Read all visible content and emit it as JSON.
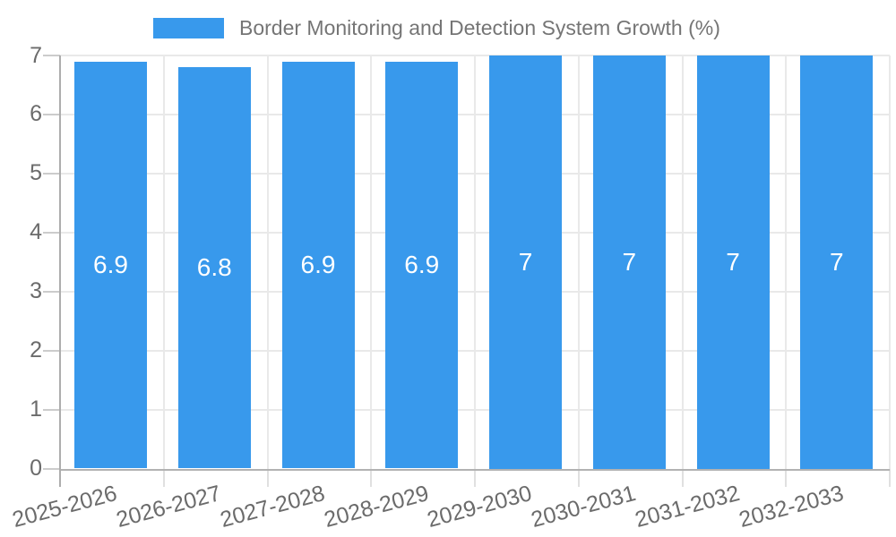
{
  "chart_data": {
    "type": "bar",
    "title": "Border Monitoring and Detection System Growth (%)",
    "categories": [
      "2025-2026",
      "2026-2027",
      "2027-2028",
      "2028-2029",
      "2029-2030",
      "2030-2031",
      "2031-2032",
      "2032-2033"
    ],
    "series": [
      {
        "name": "Border Monitoring and Detection System Growth (%)",
        "values": [
          6.9,
          6.8,
          6.9,
          6.9,
          7,
          7,
          7,
          7
        ]
      }
    ],
    "value_labels": [
      "6.9",
      "6.8",
      "6.9",
      "6.9",
      "7",
      "7",
      "7",
      "7"
    ],
    "xlabel": "",
    "ylabel": "",
    "ylim": [
      0,
      7
    ],
    "yticks": [
      0,
      1,
      2,
      3,
      4,
      5,
      6,
      7
    ],
    "grid": true,
    "legend_position": "top",
    "bar_color": "#3899EC",
    "value_label_color": "#FFFFFF"
  },
  "legend": {
    "label": "Border Monitoring and Detection System Growth (%)"
  },
  "colors": {
    "bar": "#3899EC",
    "gridline": "#E9E9E9",
    "axis_line": "#ADADAD",
    "baseline": "#B2B2B2",
    "tick_text": "#6B6B6B",
    "legend_text": "#757575",
    "background": "#FFFFFF"
  }
}
